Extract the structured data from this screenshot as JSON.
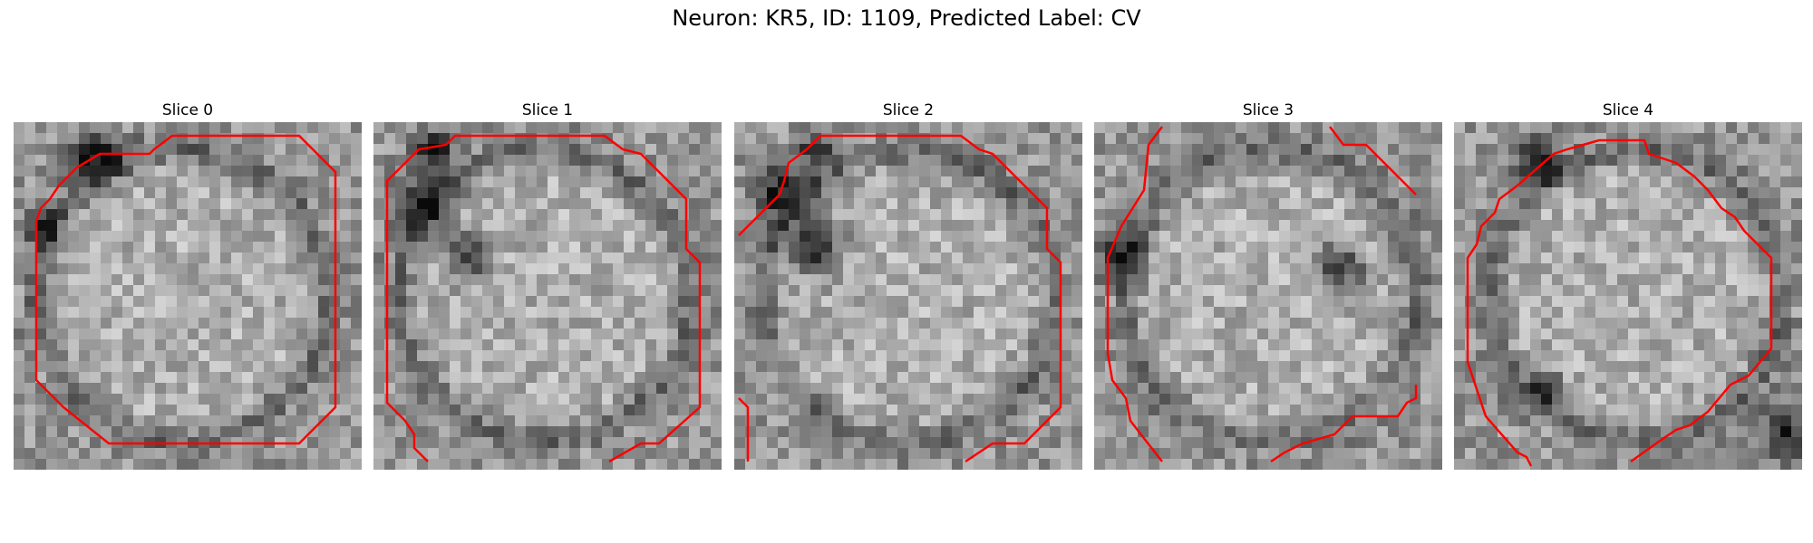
{
  "figure": {
    "title": "Neuron: KR5, ID: 1109, Predicted Label: CV",
    "contour_color": "#ff0000"
  },
  "panels": [
    {
      "title": "Slice 0"
    },
    {
      "title": "Slice 1"
    },
    {
      "title": "Slice 2"
    },
    {
      "title": "Slice 3"
    },
    {
      "title": "Slice 4"
    }
  ]
}
